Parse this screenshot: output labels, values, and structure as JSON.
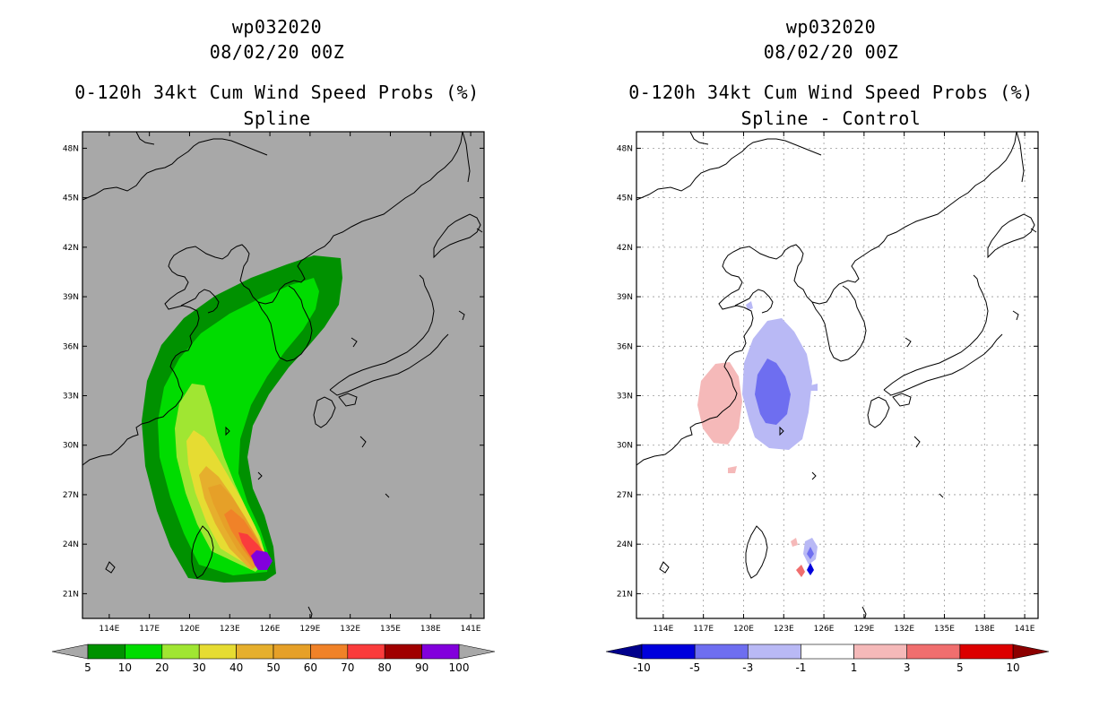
{
  "chart_data": [
    {
      "type": "heatmap",
      "id": "spline",
      "title_lines": [
        "wp032020",
        "08/02/20 00Z",
        "0-120h 34kt Cum Wind Speed Probs (%)",
        "Spline"
      ],
      "x_ticks": [
        "114E",
        "117E",
        "120E",
        "123E",
        "126E",
        "129E",
        "132E",
        "135E",
        "138E",
        "141E"
      ],
      "y_ticks": [
        "48N",
        "45N",
        "42N",
        "39N",
        "36N",
        "33N",
        "30N",
        "27N",
        "24N",
        "21N"
      ],
      "xlim": [
        112,
        142
      ],
      "ylim": [
        19.5,
        49
      ],
      "background_color": "#a8a8a8",
      "colorbar": {
        "labels": [
          "5",
          "10",
          "20",
          "30",
          "40",
          "50",
          "60",
          "70",
          "80",
          "90",
          "100"
        ],
        "colors": [
          "#009100",
          "#00dc00",
          "#a0e632",
          "#e6dc32",
          "#e6af2d",
          "#e6a028",
          "#f08228",
          "#fa3c3c",
          "#a00000",
          "#8200dc"
        ],
        "end_low": "#a8a8a8",
        "end_high": "#a8a8a8"
      },
      "contours": [
        {
          "level": 5,
          "color": "#009100"
        },
        {
          "level": 10,
          "color": "#00dc00"
        },
        {
          "level": 20,
          "color": "#a0e632"
        },
        {
          "level": 30,
          "color": "#e6dc32"
        },
        {
          "level": 40,
          "color": "#e6af2d"
        },
        {
          "level": 50,
          "color": "#e6a028"
        },
        {
          "level": 60,
          "color": "#f08228"
        },
        {
          "level": 70,
          "color": "#fa3c3c"
        },
        {
          "level": 90,
          "color": "#8200dc"
        }
      ]
    },
    {
      "type": "heatmap",
      "id": "difference",
      "title_lines": [
        "wp032020",
        "08/02/20 00Z",
        "0-120h 34kt Cum Wind Speed Probs (%)",
        "Spline - Control"
      ],
      "x_ticks": [
        "114E",
        "117E",
        "120E",
        "123E",
        "126E",
        "129E",
        "132E",
        "135E",
        "138E",
        "141E"
      ],
      "y_ticks": [
        "48N",
        "45N",
        "42N",
        "39N",
        "36N",
        "33N",
        "30N",
        "27N",
        "24N",
        "21N"
      ],
      "xlim": [
        112,
        142
      ],
      "ylim": [
        19.5,
        49
      ],
      "background_color": "#ffffff",
      "grid": true,
      "colorbar": {
        "labels": [
          "-10",
          "-5",
          "-3",
          "-1",
          "1",
          "3",
          "5",
          "10"
        ],
        "colors": [
          "#0000dc",
          "#6e6ef0",
          "#b9b9f5",
          "#ffffff",
          "#f5b9b9",
          "#f06e6e",
          "#dc0000"
        ],
        "end_low": "#00008c",
        "end_high": "#8c0000"
      }
    }
  ]
}
